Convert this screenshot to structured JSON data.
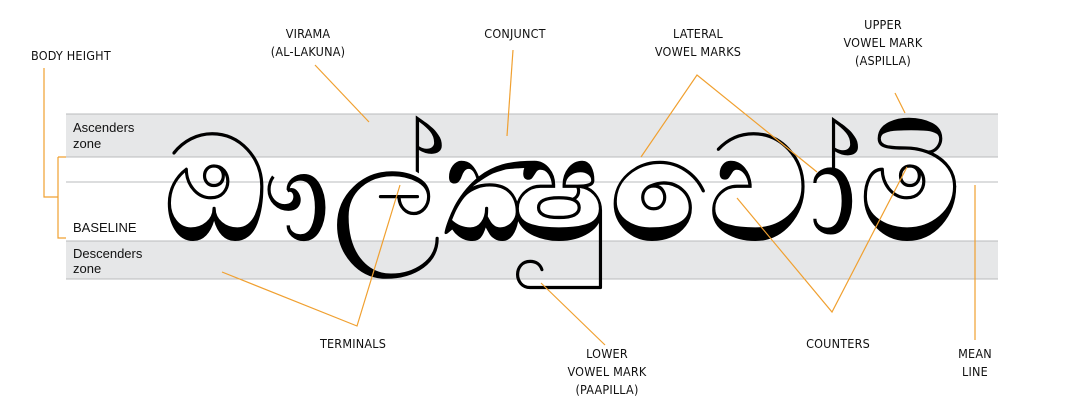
{
  "labels": {
    "body_height": "BODY HEIGHT",
    "virama": [
      "VIRAMA",
      "(AL-LAKUNA)"
    ],
    "conjunct": "CONJUNCT",
    "lateral": [
      "LATERAL",
      "VOWEL MARKS"
    ],
    "upper": [
      "UPPER",
      "VOWEL MARK",
      "(ASPILLA)"
    ],
    "terminals": "TERMINALS",
    "lower": [
      "LOWER",
      "VOWEL MARK",
      "(PAAPILLA)"
    ],
    "counters": "COUNTERS",
    "mean_line": [
      "MEAN",
      "LINE"
    ]
  },
  "zones": {
    "ascenders": [
      "Ascenders",
      "zone"
    ],
    "baseline": "BASELINE",
    "descenders": [
      "Descenders",
      "zone"
    ]
  },
  "sample_text": "ඖල්ක්‍ෂුවෝමි",
  "colors": {
    "leader": "#f0a030",
    "zone_fill": "#e6e7e8",
    "guide": "#b9bbbd",
    "glyph": "#000000"
  }
}
